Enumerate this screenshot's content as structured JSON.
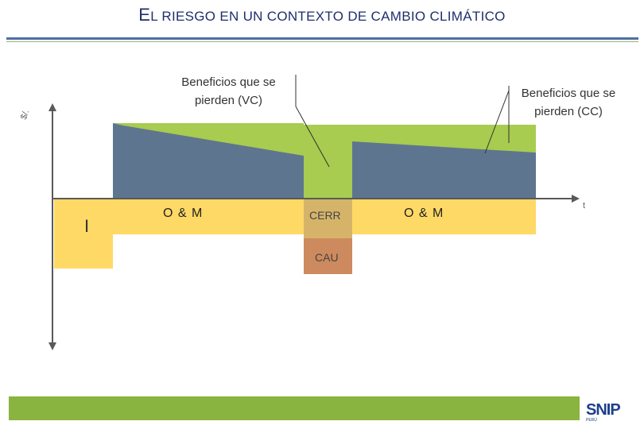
{
  "header": {
    "title_first_letter": "E",
    "title_rest": "L RIESGO EN UN CONTEXTO DE CAMBIO CLIMÁTICO"
  },
  "diagram": {
    "label_benefits_vc": "Beneficios que se pierden (VC)",
    "label_benefits_cc": "Beneficios que se pierden (CC)",
    "label_om_left": "O & M",
    "label_om_right": "O & M",
    "label_cerr": "CERR",
    "label_cau": "CAU",
    "label_investment": "I",
    "axis_y_label": "$/.",
    "axis_x_label": "t",
    "colors": {
      "benefits_cc": "#5e7590",
      "benefits_lost": "#a7cc4f",
      "om": "#ffd966",
      "cerr": "#d5b46a",
      "cau": "#cd8a5e",
      "axis": "#595959"
    }
  },
  "footer": {
    "logo_text": "SNIP",
    "logo_sub": "PERÚ",
    "accent_color": "#8ab440"
  }
}
